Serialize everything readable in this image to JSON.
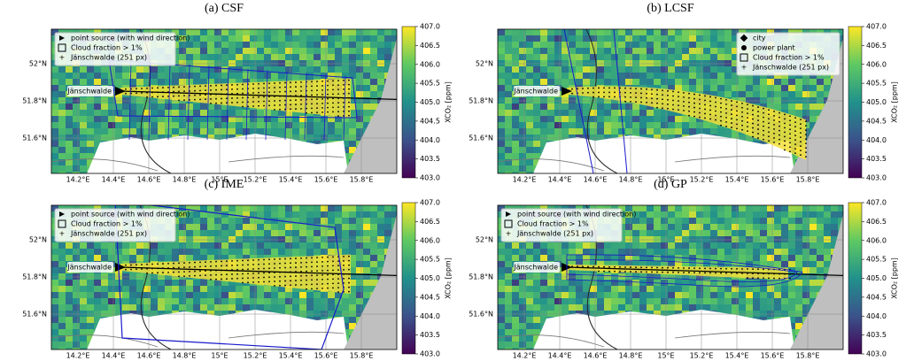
{
  "panels": [
    {
      "title": "(a) CSF",
      "legend": [
        "point source (with wind direction)",
        "Cloud fraction > 1%",
        "Jänschwalde (251 px)"
      ],
      "source_label": "Jänschwalde"
    },
    {
      "title": "(b) LCSF",
      "legend": [
        "city",
        "power plant",
        "Cloud fraction > 1%",
        "Jänschwalde (251 px)"
      ],
      "source_label": "Jänschwalde"
    },
    {
      "title": "(c) IME",
      "legend": [
        "point source (with wind direction)",
        "Cloud fraction > 1%",
        "Jänschwalde (251 px)"
      ],
      "source_label": "Jänschwalde"
    },
    {
      "title": "(d) GP",
      "legend": [
        "point source (with wind direction)",
        "Cloud fraction > 1%",
        "Jänschwalde (251 px)"
      ],
      "source_label": "Jänschwalde"
    }
  ],
  "lon_labels": [
    "14.2°E",
    "14.4°E",
    "14.6°E",
    "14.8°E",
    "15°E",
    "15.2°E",
    "15.4°E",
    "15.6°E",
    "15.8°E"
  ],
  "lat_labels": [
    "52°N",
    "51.8°N",
    "51.6°N"
  ],
  "colorbar": {
    "label": "XCO₂ [ppm]",
    "lim": [
      403,
      407
    ],
    "ticks": [
      {
        "value": 407,
        "label": "407.0"
      },
      {
        "value": 406.5,
        "label": "406.5"
      },
      {
        "value": 406,
        "label": "406.0"
      },
      {
        "value": 405.5,
        "label": "405.5"
      },
      {
        "value": 405,
        "label": "405.0"
      },
      {
        "value": 404.5,
        "label": "404.5"
      },
      {
        "value": 404,
        "label": "404.0"
      },
      {
        "value": 403.5,
        "label": "403.5"
      },
      {
        "value": 403,
        "label": "403.0"
      }
    ]
  }
}
